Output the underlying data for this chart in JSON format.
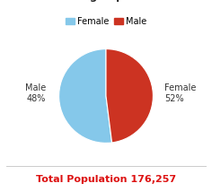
{
  "slices": [
    52,
    48
  ],
  "labels": [
    "Female",
    "Male"
  ],
  "colors": [
    "#85c8ea",
    "#cc3322"
  ],
  "pct_labels_right": "Female\n52%",
  "pct_labels_left": "Male\n48%",
  "legend_labels": [
    "Female",
    "Male"
  ],
  "legend_colors": [
    "#85c8ea",
    "#cc3322"
  ],
  "footer_text": "Total Population 176,257",
  "footer_color": "#dd1111",
  "background_color": "#ffffff",
  "startangle": 90,
  "title_fontsize": 8.5,
  "label_fontsize": 7,
  "footer_fontsize": 8,
  "legend_fontsize": 7
}
